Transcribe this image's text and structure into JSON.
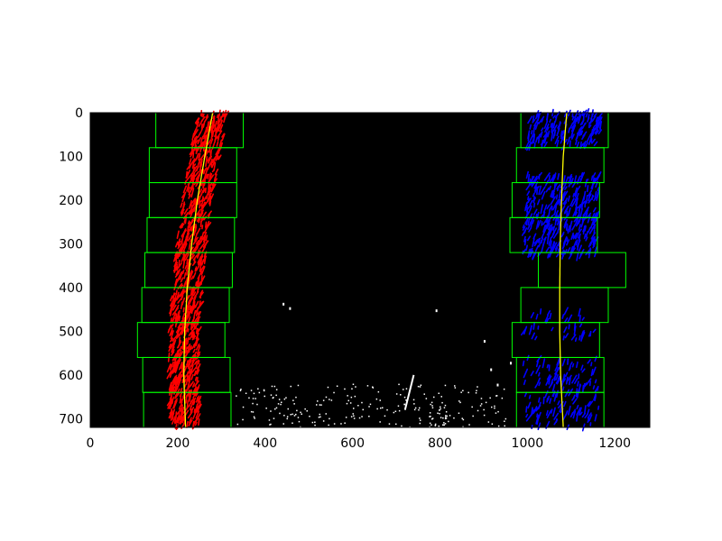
{
  "x_axis": {
    "range": [
      0,
      1280
    ],
    "ticks": [
      0,
      200,
      400,
      600,
      800,
      1000,
      1200
    ],
    "tick_labels": [
      "0",
      "200",
      "400",
      "600",
      "800",
      "1000",
      "1200"
    ]
  },
  "y_axis": {
    "range": [
      0,
      720
    ],
    "inverted": true,
    "ticks": [
      0,
      100,
      200,
      300,
      400,
      500,
      600,
      700
    ],
    "tick_labels": [
      "0",
      "100",
      "200",
      "300",
      "400",
      "500",
      "600",
      "700"
    ]
  },
  "colors": {
    "background": "#000000",
    "left_lane_pixels": "#ff0000",
    "right_lane_pixels": "#0000ff",
    "fit_line": "#ffff00",
    "search_window": "#00ff00",
    "noise": "#ffffff"
  },
  "left_windows": [
    {
      "x": [
        150,
        350
      ],
      "y": [
        0,
        80
      ]
    },
    {
      "x": [
        135,
        335
      ],
      "y": [
        80,
        160
      ]
    },
    {
      "x": [
        135,
        335
      ],
      "y": [
        160,
        240
      ]
    },
    {
      "x": [
        130,
        330
      ],
      "y": [
        240,
        320
      ]
    },
    {
      "x": [
        125,
        325
      ],
      "y": [
        320,
        400
      ]
    },
    {
      "x": [
        118,
        318
      ],
      "y": [
        400,
        480
      ]
    },
    {
      "x": [
        108,
        308
      ],
      "y": [
        480,
        560
      ]
    },
    {
      "x": [
        120,
        320
      ],
      "y": [
        560,
        640
      ]
    },
    {
      "x": [
        122,
        322
      ],
      "y": [
        640,
        720
      ]
    }
  ],
  "right_windows": [
    {
      "x": [
        985,
        1185
      ],
      "y": [
        0,
        80
      ]
    },
    {
      "x": [
        975,
        1175
      ],
      "y": [
        80,
        160
      ]
    },
    {
      "x": [
        965,
        1165
      ],
      "y": [
        160,
        240
      ]
    },
    {
      "x": [
        960,
        1160
      ],
      "y": [
        240,
        320
      ]
    },
    {
      "x": [
        1025,
        1225
      ],
      "y": [
        320,
        400
      ]
    },
    {
      "x": [
        985,
        1185
      ],
      "y": [
        400,
        480
      ]
    },
    {
      "x": [
        965,
        1165
      ],
      "y": [
        480,
        560
      ]
    },
    {
      "x": [
        975,
        1175
      ],
      "y": [
        560,
        640
      ]
    },
    {
      "x": [
        975,
        1175
      ],
      "y": [
        640,
        720
      ]
    }
  ],
  "left_fit": [
    [
      280,
      0
    ],
    [
      262,
      100
    ],
    [
      245,
      200
    ],
    [
      232,
      300
    ],
    [
      222,
      400
    ],
    [
      216,
      500
    ],
    [
      214,
      600
    ],
    [
      218,
      720
    ]
  ],
  "right_fit": [
    [
      1090,
      0
    ],
    [
      1082,
      100
    ],
    [
      1078,
      200
    ],
    [
      1075,
      300
    ],
    [
      1074,
      400
    ],
    [
      1074,
      500
    ],
    [
      1076,
      600
    ],
    [
      1082,
      720
    ]
  ]
}
